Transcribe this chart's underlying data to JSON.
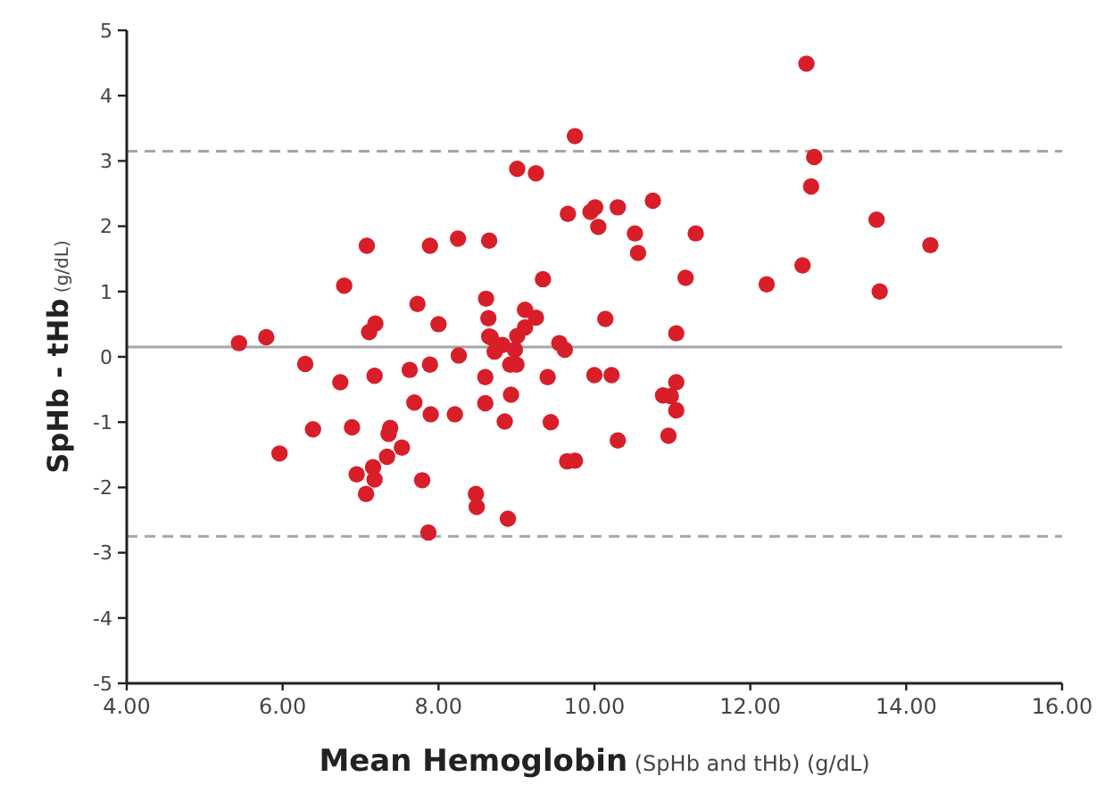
{
  "chart_data": {
    "type": "scatter",
    "xlabel": "Mean Hemoglobin (SpHb and tHb) (g/dL)",
    "ylabel": "SpHb - tHb (g/dL)",
    "xlim": [
      4,
      16
    ],
    "xticks": [
      {
        "value": 4,
        "label": "4.00"
      },
      {
        "value": 6,
        "label": "6.00"
      },
      {
        "value": 8,
        "label": "8.00"
      },
      {
        "value": 10,
        "label": "10.00"
      },
      {
        "value": 12,
        "label": "12.00"
      },
      {
        "value": 14,
        "label": "14.00"
      },
      {
        "value": 16,
        "label": "16.00"
      }
    ],
    "ylim": [
      -5,
      5
    ],
    "yticks": [
      -5,
      -4,
      -3,
      -2,
      -1,
      0,
      1,
      2,
      3,
      4,
      5
    ],
    "grid": false,
    "marker": "circle",
    "ref_lines": [
      {
        "axis": "y",
        "value": 3.15,
        "label": null,
        "color": "#a6a6a6",
        "line_style": "dashed"
      },
      {
        "axis": "y",
        "value": 0.15,
        "label": null,
        "color": "#a6a6a6",
        "line_style": "solid"
      },
      {
        "axis": "y",
        "value": -2.75,
        "label": null,
        "color": "#a6a6a6",
        "line_style": "dashed"
      }
    ],
    "series": [
      {
        "color": "#d81e28",
        "x": [
          5.44,
          5.79,
          5.96,
          6.29,
          6.39,
          6.74,
          6.79,
          6.89,
          6.95,
          7.07,
          7.08,
          7.11,
          7.16,
          7.18,
          7.18,
          7.19,
          7.34,
          7.36,
          7.38,
          7.53,
          7.63,
          7.69,
          7.73,
          7.79,
          7.87,
          7.89,
          7.89,
          7.9,
          8.0,
          8.21,
          8.25,
          8.26,
          8.48,
          8.49,
          8.6,
          8.6,
          8.61,
          8.64,
          8.65,
          8.65,
          8.67,
          8.72,
          8.82,
          8.85,
          8.89,
          8.92,
          8.93,
          8.98,
          9.0,
          9.01,
          9.01,
          9.11,
          9.11,
          9.25,
          9.25,
          9.34,
          9.4,
          9.44,
          9.55,
          9.62,
          9.65,
          9.66,
          9.75,
          9.75,
          9.95,
          10.0,
          10.01,
          10.05,
          10.14,
          10.22,
          10.3,
          10.3,
          10.52,
          10.56,
          10.75,
          10.88,
          10.95,
          10.98,
          11.05,
          11.05,
          11.05,
          11.17,
          11.3,
          12.21,
          12.67,
          12.72,
          12.78,
          12.82,
          13.62,
          13.66,
          14.31
        ],
        "values": [
          0.21,
          0.3,
          -1.48,
          -0.11,
          -1.11,
          -0.39,
          1.09,
          -1.08,
          -1.8,
          -2.1,
          1.7,
          0.38,
          -1.69,
          -1.88,
          -0.29,
          0.51,
          -1.53,
          -1.18,
          -1.09,
          -1.39,
          -0.2,
          -0.7,
          0.81,
          -1.89,
          -2.69,
          -0.12,
          1.7,
          -0.88,
          0.5,
          -0.88,
          1.81,
          0.02,
          -2.1,
          -2.3,
          -0.31,
          -0.71,
          0.89,
          0.59,
          0.31,
          1.78,
          0.3,
          0.08,
          0.18,
          -0.99,
          -2.48,
          -0.12,
          -0.58,
          0.11,
          -0.12,
          0.32,
          2.88,
          0.45,
          0.72,
          0.6,
          2.81,
          1.19,
          -0.31,
          -1.0,
          0.21,
          0.11,
          -1.6,
          2.19,
          -1.59,
          3.38,
          2.22,
          -0.28,
          2.29,
          1.99,
          0.58,
          -0.28,
          2.29,
          -1.28,
          1.89,
          1.59,
          2.39,
          -0.59,
          -1.21,
          -0.6,
          0.36,
          -0.39,
          -0.82,
          1.21,
          1.89,
          1.11,
          1.4,
          4.49,
          2.61,
          3.06,
          2.1,
          1.0,
          1.71
        ]
      }
    ]
  }
}
